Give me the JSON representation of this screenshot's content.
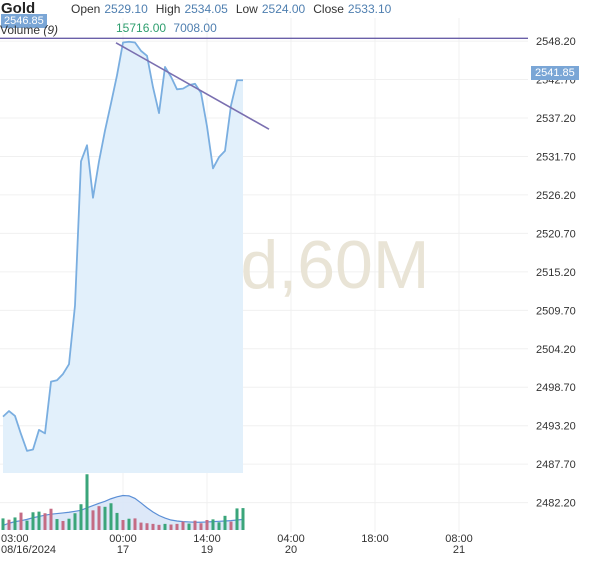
{
  "header": {
    "symbol": "Gold",
    "open_label": "Open",
    "open_value": "2529.10",
    "high_label": "High",
    "high_value": "2534.05",
    "low_label": "Low",
    "low_value": "2524.00",
    "close_label": "Close",
    "close_value": "2533.10",
    "volume_label": "Volume",
    "volume_period": "(9)",
    "volume_value": "15716.00",
    "volume_ma": "7008.00",
    "last_price_left": "2546.85",
    "last_price_right": "2541.85"
  },
  "watermark": "d,60M",
  "colors": {
    "line": "#7aaee0",
    "area": "#e2f0fb",
    "vol_up": "#3aa57a",
    "vol_down": "#c46b84",
    "vol_ma": "#5b8fd6",
    "trendline": "#7a6fb0",
    "hline": "#6a5fa8",
    "badge": "#7aa6d6"
  },
  "chart_data": {
    "type": "area",
    "title": "Gold",
    "ylim": [
      2478.0,
      2551.5
    ],
    "y_ticks": [
      "2548.20",
      "2542.70",
      "2537.20",
      "2531.70",
      "2526.20",
      "2520.70",
      "2515.20",
      "2509.70",
      "2504.20",
      "2498.70",
      "2493.20",
      "2487.70",
      "2482.20"
    ],
    "x_ticks": [
      {
        "label": "03:00",
        "date": "08/16/2024",
        "index": 0
      },
      {
        "label": "00:00",
        "date": "17",
        "index": 20
      },
      {
        "label": "14:00",
        "date": "19",
        "index": 34
      },
      {
        "label": "04:00",
        "date": "20",
        "index": 48
      },
      {
        "label": "18:00",
        "date": "",
        "index": 62
      },
      {
        "label": "08:00",
        "date": "21",
        "index": 76
      }
    ],
    "x_categories": 100,
    "price": [
      2494.5,
      2495.3,
      2494.6,
      2492.0,
      2489.6,
      2489.8,
      2492.6,
      2492.1,
      2499.5,
      2499.7,
      2500.6,
      2502.0,
      2510.4,
      2531.0,
      2533.3,
      2525.8,
      2531.0,
      2535.4,
      2539.3,
      2543.3,
      2548.0,
      2548.1,
      2548.0,
      2546.8,
      2546.1,
      2541.6,
      2537.9,
      2544.5,
      2543.1,
      2541.3,
      2541.4,
      2541.9,
      2542.1,
      2540.8,
      2536.0,
      2530.0,
      2531.6,
      2532.5,
      2539.0,
      2542.6,
      2542.6
    ],
    "volume": [
      3600,
      3200,
      3900,
      5400,
      2900,
      5500,
      5700,
      5200,
      6600,
      3400,
      2800,
      3500,
      5200,
      8000,
      17300,
      6100,
      7400,
      7200,
      8300,
      5300,
      3100,
      3500,
      3600,
      2300,
      2100,
      1900,
      1600,
      1900,
      1700,
      1900,
      2600,
      2000,
      2900,
      2100,
      3100,
      3300,
      2400,
      4400,
      2600,
      6700,
      6800
    ],
    "volume_ma": [
      1400,
      2100,
      2600,
      2900,
      3300,
      3800,
      4200,
      4600,
      4900,
      5100,
      5300,
      5500,
      5800,
      6100,
      6900,
      7600,
      8300,
      8900,
      9700,
      10300,
      10700,
      10600,
      9800,
      8400,
      6900,
      5600,
      4500,
      3700,
      3100,
      2800,
      2600,
      2500,
      2400,
      2400,
      2500,
      2600,
      2700,
      2800,
      2900,
      3100,
      3300
    ],
    "volume_up": [
      true,
      false,
      true,
      false,
      true,
      true,
      true,
      false,
      false,
      true,
      false,
      true,
      true,
      true,
      true,
      false,
      false,
      true,
      true,
      true,
      false,
      true,
      false,
      false,
      false,
      false,
      false,
      true,
      false,
      false,
      false,
      true,
      false,
      false,
      false,
      true,
      true,
      true,
      false,
      true,
      true
    ],
    "volume_max": 18000,
    "hline": 2548.6,
    "trendline": [
      {
        "index": 20,
        "value": 2548.1
      },
      {
        "index": 47,
        "value": 2535.6
      }
    ]
  }
}
